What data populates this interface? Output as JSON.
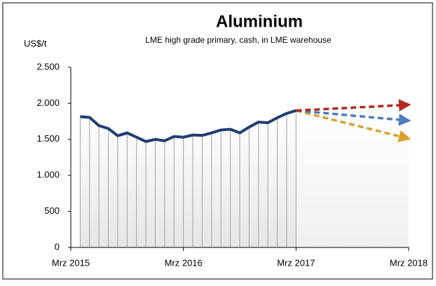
{
  "chart_data": {
    "type": "line",
    "title": "Aluminium",
    "subtitle": "LME high grade primary, cash, in LME warehouse",
    "y_label": "US$/t",
    "xlim": [
      0,
      36
    ],
    "xticks": [
      {
        "value": 0,
        "label": "Mrz 2015"
      },
      {
        "value": 12,
        "label": "Mrz 2016"
      },
      {
        "value": 24,
        "label": "Mrz 2017"
      },
      {
        "value": 36,
        "label": "Mrz 2018"
      }
    ],
    "ylim": [
      0,
      2500
    ],
    "yticks": [
      0,
      500,
      {
        "value": 1000,
        "label": "1.000"
      },
      {
        "value": 1500,
        "label": "1.500"
      },
      {
        "value": 2000,
        "label": "2.000"
      },
      {
        "value": 2500,
        "label": "2.500"
      }
    ],
    "series": [
      {
        "color": "#1f3d73",
        "x": [
          1,
          2,
          3,
          4,
          5,
          6,
          7,
          8,
          9,
          10,
          11,
          12,
          13,
          14,
          15,
          16,
          17,
          18,
          19,
          20,
          21,
          22,
          23,
          24
        ],
        "values": [
          1815,
          1805,
          1690,
          1650,
          1550,
          1590,
          1530,
          1470,
          1500,
          1480,
          1540,
          1530,
          1560,
          1555,
          1590,
          1630,
          1640,
          1590,
          1670,
          1740,
          1730,
          1800,
          1860,
          1900
        ]
      },
      {
        "color": "#b22a1e",
        "dashed": true,
        "x": [
          24,
          36
        ],
        "values": [
          1900,
          1980
        ]
      },
      {
        "color": "#4a7cc0",
        "dashed": true,
        "x": [
          24,
          36
        ],
        "values": [
          1900,
          1760
        ]
      },
      {
        "color": "#d9a030",
        "dashed": true,
        "x": [
          24,
          36
        ],
        "values": [
          1900,
          1510
        ]
      }
    ]
  }
}
